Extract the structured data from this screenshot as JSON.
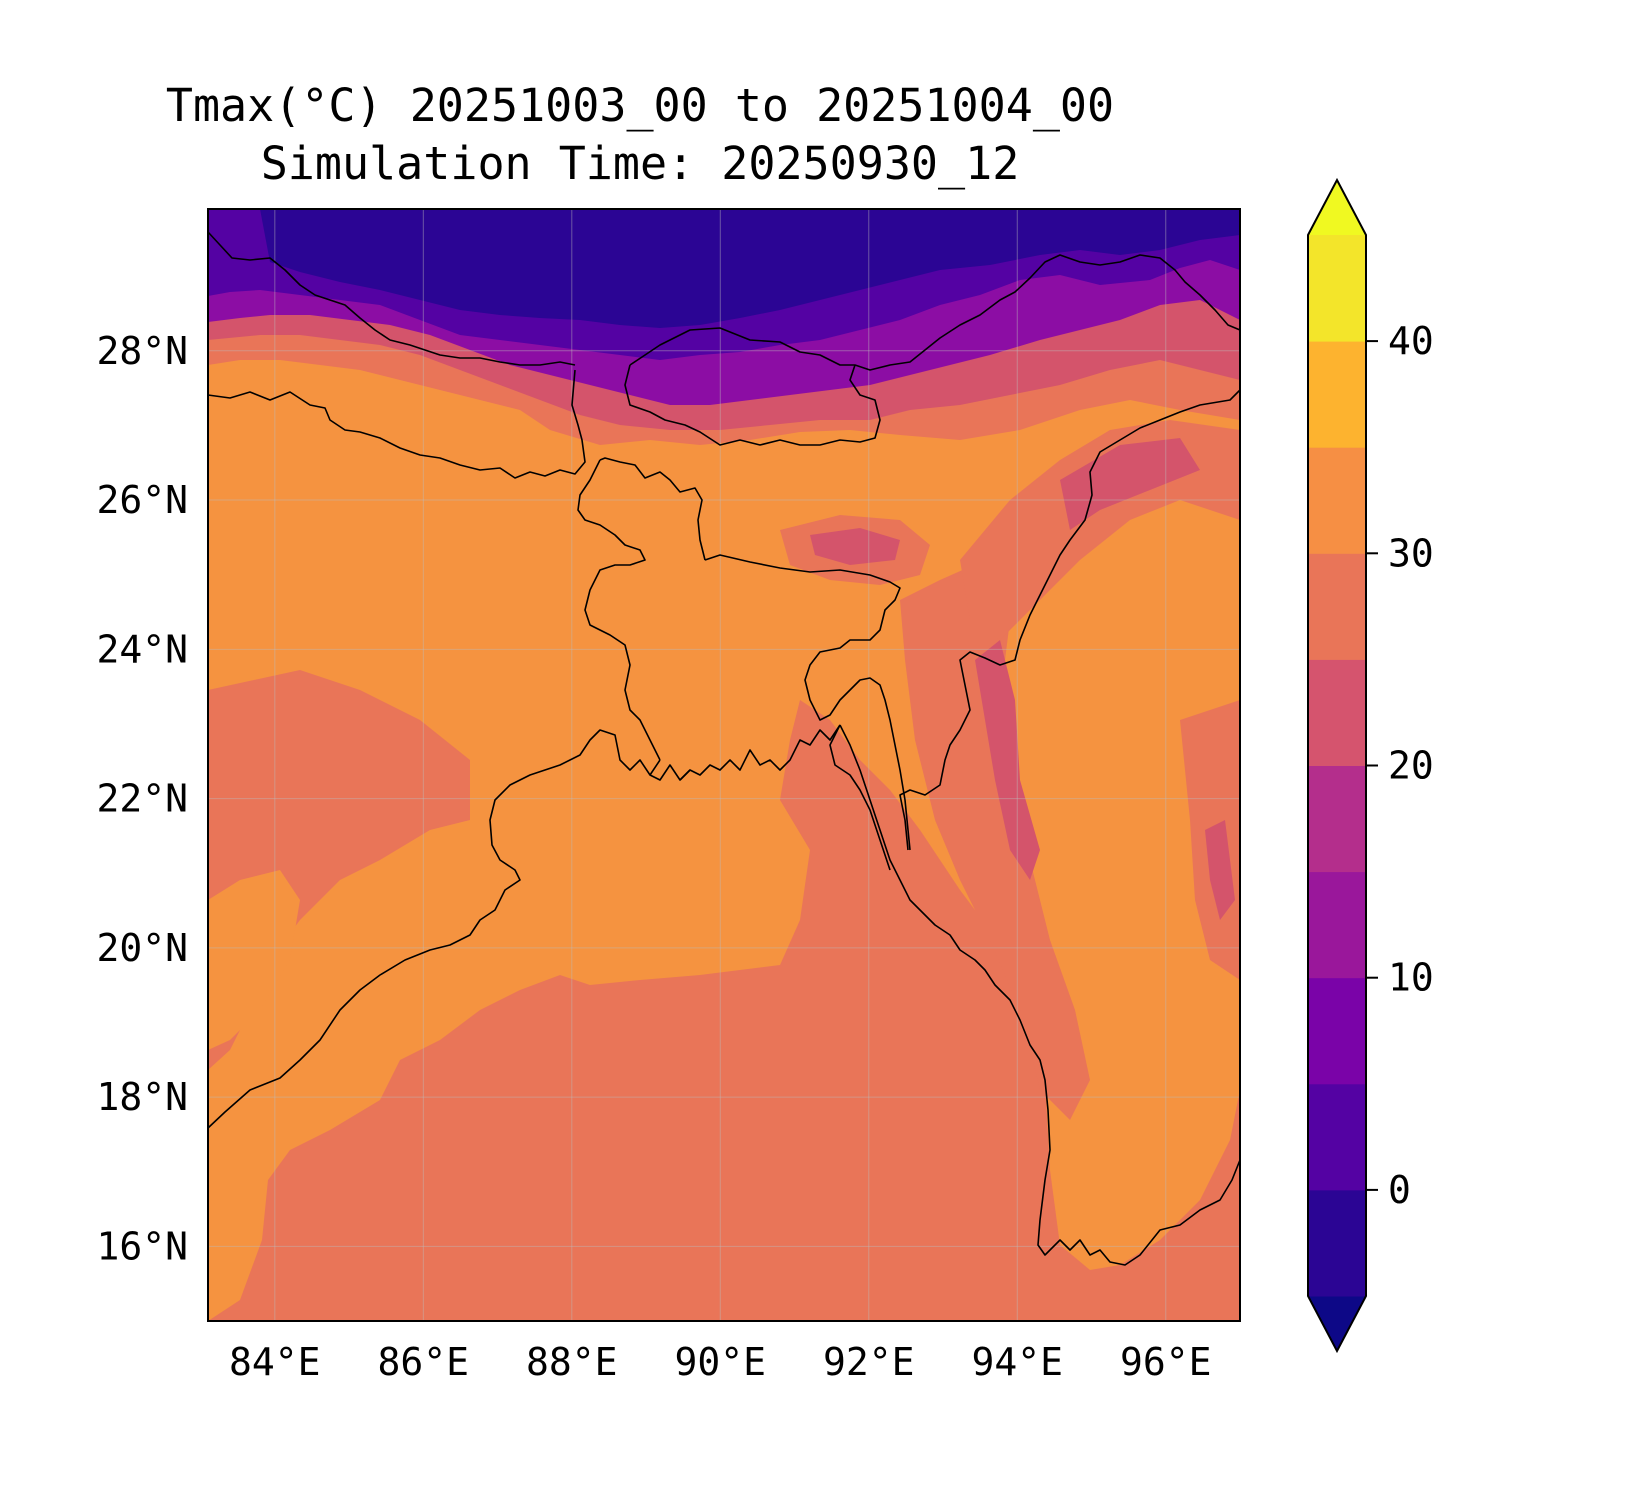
{
  "title": {
    "line1": "Tmax(°C) 20251003_00 to 20251004_00",
    "line2": "Simulation Time: 20250930_12"
  },
  "map": {
    "variable": "Tmax",
    "units": "°C",
    "lon_range": [
      83.1,
      97.0
    ],
    "lat_range": [
      15.0,
      29.9
    ],
    "x_ticks": [
      84,
      86,
      88,
      90,
      92,
      94,
      96
    ],
    "y_ticks": [
      16,
      18,
      20,
      22,
      24,
      26,
      28
    ],
    "x_tick_labels": [
      "84°E",
      "86°E",
      "88°E",
      "90°E",
      "92°E",
      "94°E",
      "96°E"
    ],
    "y_tick_labels": [
      "16°N",
      "18°N",
      "20°N",
      "22°N",
      "24°N",
      "26°N",
      "28°N"
    ],
    "grid": true,
    "colors": {
      "sea": "#e97558",
      "land_warm": "#f59340",
      "himalaya_mid": "#d4546b",
      "himalaya_high": "#8c0da4",
      "himalaya_peak": "#4c02a1"
    }
  },
  "colorbar": {
    "levels": [
      -5,
      0,
      5,
      10,
      15,
      20,
      25,
      30,
      35,
      40,
      45
    ],
    "ticks": [
      0,
      10,
      20,
      30,
      40
    ],
    "tick_labels": [
      "0",
      "10",
      "20",
      "30",
      "40"
    ],
    "extend": "both",
    "colors": [
      "#0d0887",
      "#2b0594",
      "#5402a3",
      "#7a03a8",
      "#9a179b",
      "#b42e8c",
      "#d5546e",
      "#e97558",
      "#f68f44",
      "#fdb32f",
      "#f3e52a",
      "#f0f921"
    ]
  }
}
